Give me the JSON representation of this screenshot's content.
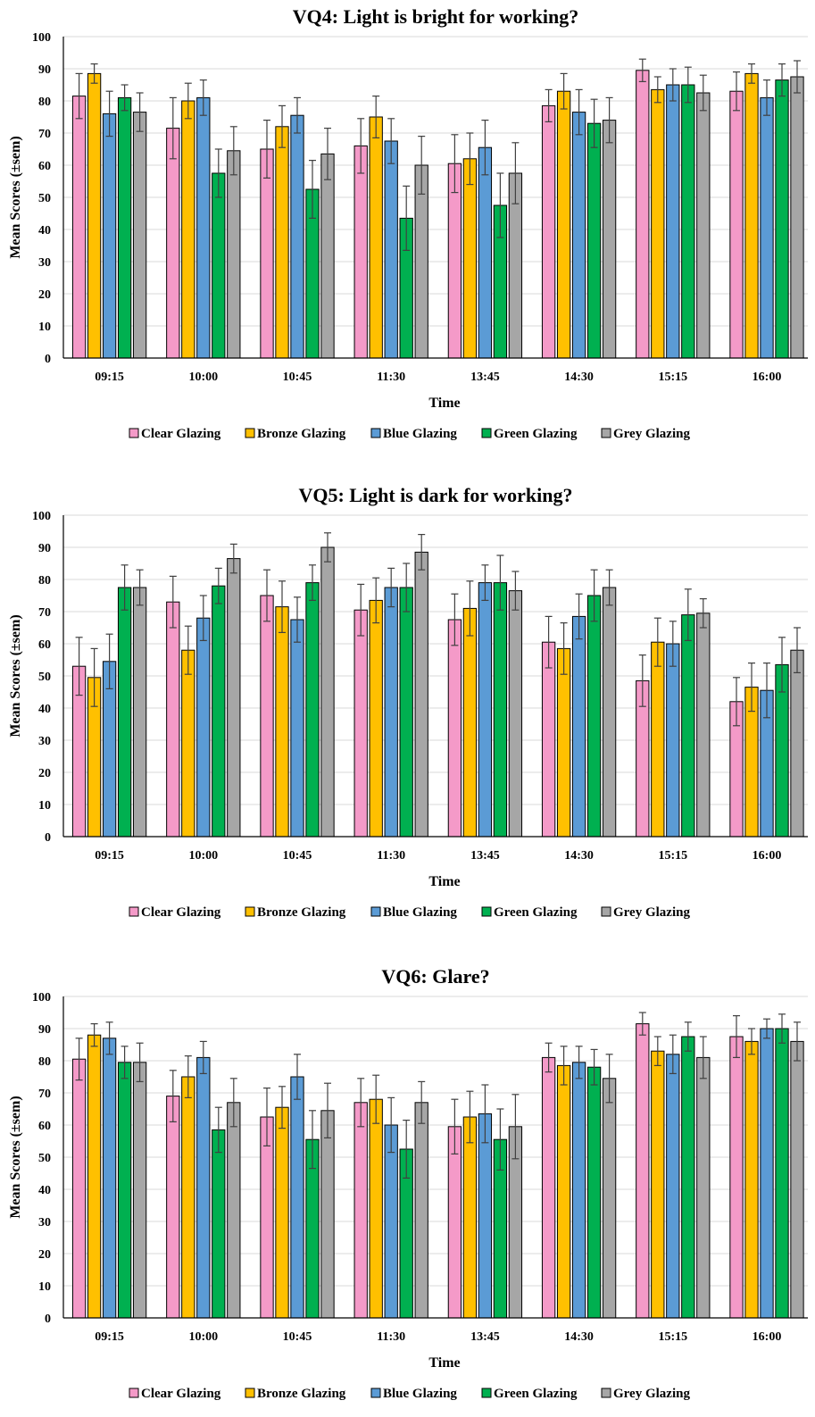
{
  "colors": {
    "Clear Glazing": "#f49ac8",
    "Bronze Glazing": "#ffc000",
    "Blue Glazing": "#5b9bd5",
    "Green Glazing": "#00b050",
    "Grey Glazing": "#a6a6a6"
  },
  "chart_data": [
    {
      "type": "bar",
      "title": "VQ4: Light is bright for working?",
      "xlabel": "Time",
      "ylabel": "Mean Scores (±sem)",
      "ylim": [
        0,
        100
      ],
      "yticks": [
        0,
        10,
        20,
        30,
        40,
        50,
        60,
        70,
        80,
        90,
        100
      ],
      "grid": true,
      "legend": "bottom",
      "categories": [
        "09:15",
        "10:00",
        "10:45",
        "11:30",
        "13:45",
        "14:30",
        "15:15",
        "16:00"
      ],
      "series": [
        {
          "name": "Clear Glazing",
          "values": [
            81.5,
            71.5,
            65,
            66,
            60.5,
            78.5,
            89.5,
            83
          ],
          "errors": [
            7,
            9.5,
            9,
            8.5,
            9,
            5,
            3.5,
            6
          ]
        },
        {
          "name": "Bronze Glazing",
          "values": [
            88.5,
            80,
            72,
            75,
            62,
            83,
            83.5,
            88.5
          ],
          "errors": [
            3,
            5.5,
            6.5,
            6.5,
            8,
            5.5,
            4,
            3
          ]
        },
        {
          "name": "Blue Glazing",
          "values": [
            76,
            81,
            75.5,
            67.5,
            65.5,
            76.5,
            85,
            81
          ],
          "errors": [
            7,
            5.5,
            5.5,
            7,
            8.5,
            7,
            5,
            5.5
          ]
        },
        {
          "name": "Green Glazing",
          "values": [
            81,
            57.5,
            52.5,
            43.5,
            47.5,
            73,
            85,
            86.5
          ],
          "errors": [
            4,
            7.5,
            9,
            10,
            10,
            7.5,
            5.5,
            5
          ]
        },
        {
          "name": "Grey Glazing",
          "values": [
            76.5,
            64.5,
            63.5,
            60,
            57.5,
            74,
            82.5,
            87.5
          ],
          "errors": [
            6,
            7.5,
            8,
            9,
            9.5,
            7,
            5.5,
            5
          ]
        }
      ]
    },
    {
      "type": "bar",
      "title": "VQ5: Light is dark for working?",
      "xlabel": "Time",
      "ylabel": "Mean Scores (±sem)",
      "ylim": [
        0,
        100
      ],
      "yticks": [
        0,
        10,
        20,
        30,
        40,
        50,
        60,
        70,
        80,
        90,
        100
      ],
      "grid": true,
      "legend": "bottom",
      "categories": [
        "09:15",
        "10:00",
        "10:45",
        "11:30",
        "13:45",
        "14:30",
        "15:15",
        "16:00"
      ],
      "series": [
        {
          "name": "Clear Glazing",
          "values": [
            53,
            73,
            75,
            70.5,
            67.5,
            60.5,
            48.5,
            42
          ],
          "errors": [
            9,
            8,
            8,
            8,
            8,
            8,
            8,
            7.5
          ]
        },
        {
          "name": "Bronze Glazing",
          "values": [
            49.5,
            58,
            71.5,
            73.5,
            71,
            58.5,
            60.5,
            46.5
          ],
          "errors": [
            9,
            7.5,
            8,
            7,
            8.5,
            8,
            7.5,
            7.5
          ]
        },
        {
          "name": "Blue Glazing",
          "values": [
            54.5,
            68,
            67.5,
            77.5,
            79,
            68.5,
            60,
            45.5
          ],
          "errors": [
            8.5,
            7,
            7,
            6,
            5.5,
            7,
            7,
            8.5
          ]
        },
        {
          "name": "Green Glazing",
          "values": [
            77.5,
            78,
            79,
            77.5,
            79,
            75,
            69,
            53.5
          ],
          "errors": [
            7,
            5.5,
            5.5,
            7.5,
            8.5,
            8,
            8,
            8.5
          ]
        },
        {
          "name": "Grey Glazing",
          "values": [
            77.5,
            86.5,
            90,
            88.5,
            76.5,
            77.5,
            69.5,
            58
          ],
          "errors": [
            5.5,
            4.5,
            4.5,
            5.5,
            6,
            5.5,
            4.5,
            7
          ]
        }
      ]
    },
    {
      "type": "bar",
      "title": "VQ6: Glare?",
      "xlabel": "Time",
      "ylabel": "Mean Scores (±sem)",
      "ylim": [
        0,
        100
      ],
      "yticks": [
        0,
        10,
        20,
        30,
        40,
        50,
        60,
        70,
        80,
        90,
        100
      ],
      "grid": true,
      "legend": "bottom",
      "categories": [
        "09:15",
        "10:00",
        "10:45",
        "11:30",
        "13:45",
        "14:30",
        "15:15",
        "16:00"
      ],
      "series": [
        {
          "name": "Clear Glazing",
          "values": [
            80.5,
            69,
            62.5,
            67,
            59.5,
            81,
            91.5,
            87.5
          ],
          "errors": [
            6.5,
            8,
            9,
            7.5,
            8.5,
            4.5,
            3.5,
            6.5
          ]
        },
        {
          "name": "Bronze Glazing",
          "values": [
            88,
            75,
            65.5,
            68,
            62.5,
            78.5,
            83,
            86
          ],
          "errors": [
            3.5,
            6.5,
            6.5,
            7.5,
            8,
            6,
            4.5,
            4
          ]
        },
        {
          "name": "Blue Glazing",
          "values": [
            87,
            81,
            75,
            60,
            63.5,
            79.5,
            82,
            90
          ],
          "errors": [
            5,
            5,
            7,
            8.5,
            9,
            5,
            6,
            3
          ]
        },
        {
          "name": "Green Glazing",
          "values": [
            79.5,
            58.5,
            55.5,
            52.5,
            55.5,
            78,
            87.5,
            90
          ],
          "errors": [
            5,
            7,
            9,
            9,
            9.5,
            5.5,
            4.5,
            4.5
          ]
        },
        {
          "name": "Grey Glazing",
          "values": [
            79.5,
            67,
            64.5,
            67,
            59.5,
            74.5,
            81,
            86
          ],
          "errors": [
            6,
            7.5,
            8.5,
            6.5,
            10,
            7.5,
            6.5,
            6
          ]
        }
      ]
    }
  ]
}
